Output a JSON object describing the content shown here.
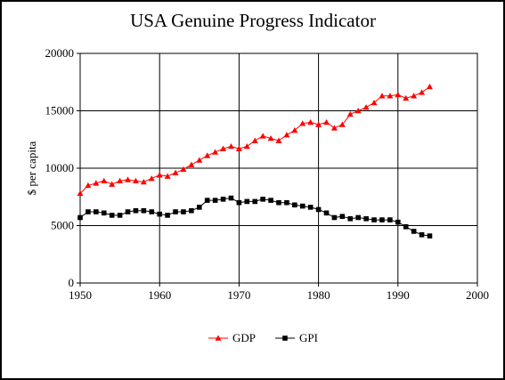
{
  "chart_data": {
    "type": "line",
    "title": "USA Genuine Progress Indicator",
    "xlabel": "",
    "ylabel": "$ per capita",
    "xlim": [
      1950,
      2000
    ],
    "ylim": [
      0,
      20000
    ],
    "x_ticks": [
      1950,
      1960,
      1970,
      1980,
      1990,
      2000
    ],
    "y_ticks": [
      0,
      5000,
      10000,
      15000,
      20000
    ],
    "grid": true,
    "legend_position": "bottom",
    "x": [
      1950,
      1951,
      1952,
      1953,
      1954,
      1955,
      1956,
      1957,
      1958,
      1959,
      1960,
      1961,
      1962,
      1963,
      1964,
      1965,
      1966,
      1967,
      1968,
      1969,
      1970,
      1971,
      1972,
      1973,
      1974,
      1975,
      1976,
      1977,
      1978,
      1979,
      1980,
      1981,
      1982,
      1983,
      1984,
      1985,
      1986,
      1987,
      1988,
      1989,
      1990,
      1991,
      1992,
      1993,
      1994
    ],
    "series": [
      {
        "name": "GDP",
        "color": "#ff0000",
        "marker": "triangle",
        "values": [
          7800,
          8500,
          8700,
          8900,
          8600,
          8900,
          9000,
          8900,
          8800,
          9100,
          9400,
          9300,
          9600,
          9900,
          10300,
          10700,
          11100,
          11400,
          11700,
          11900,
          11700,
          11900,
          12400,
          12800,
          12600,
          12400,
          12900,
          13300,
          13900,
          14000,
          13800,
          14000,
          13500,
          13800,
          14700,
          15000,
          15300,
          15700,
          16300,
          16300,
          16400,
          16100,
          16300,
          16600,
          17100
        ]
      },
      {
        "name": "GPI",
        "color": "#000000",
        "marker": "square",
        "values": [
          5700,
          6200,
          6200,
          6100,
          5900,
          5900,
          6200,
          6300,
          6300,
          6200,
          6000,
          5900,
          6200,
          6200,
          6300,
          6600,
          7200,
          7200,
          7300,
          7400,
          7000,
          7100,
          7100,
          7300,
          7200,
          7000,
          7000,
          6800,
          6700,
          6600,
          6400,
          6100,
          5700,
          5800,
          5600,
          5700,
          5600,
          5500,
          5500,
          5500,
          5300,
          4900,
          4500,
          4200,
          4100
        ]
      }
    ]
  }
}
